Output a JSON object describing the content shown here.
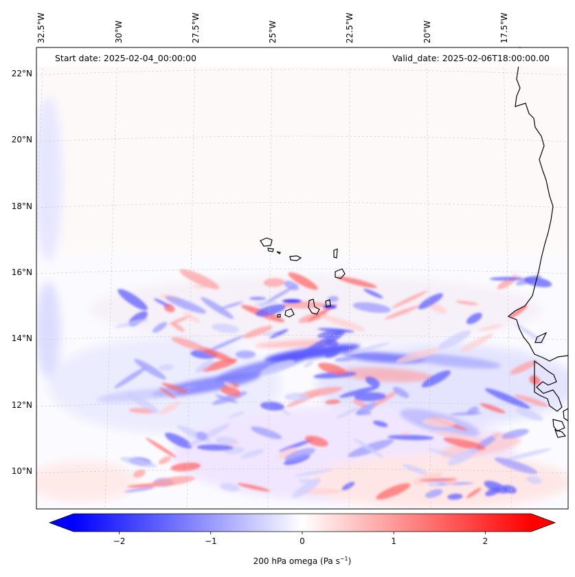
{
  "header": {
    "start_date": "Start date: 2025-02-04_00:00:00",
    "valid_date": "Valid_date: 2025-02-06T18:00:00.00"
  },
  "map": {
    "lon_labels": [
      "32.5°W",
      "30°W",
      "27.5°W",
      "25°W",
      "22.5°W",
      "20°W",
      "17.5°W"
    ],
    "lat_labels": [
      "22°N",
      "20°N",
      "18°N",
      "16°N",
      "14°N",
      "12°N",
      "10°N"
    ],
    "field": "200 hPa omega"
  },
  "colorbar": {
    "tick_labels": [
      "−2",
      "−1",
      "0",
      "1",
      "2"
    ],
    "tick_values": [
      -2,
      -1,
      0,
      1,
      2
    ],
    "range": [
      -2.5,
      2.5
    ],
    "label_main": "200 hPa omega (Pa s",
    "label_sup": "−1",
    "label_end": ")",
    "colors": {
      "negative": "#0000ff",
      "zero": "#ffffff",
      "positive": "#ff0000"
    }
  }
}
